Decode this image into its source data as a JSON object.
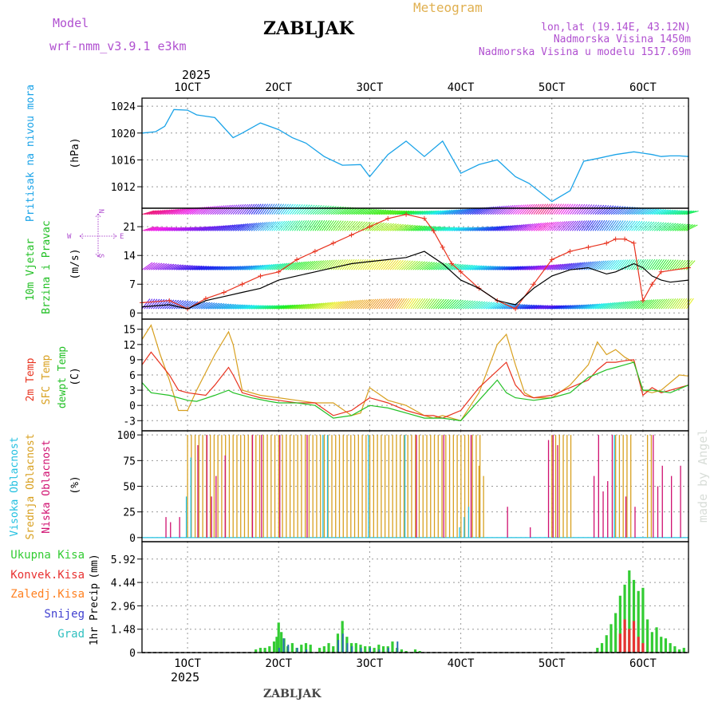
{
  "header": {
    "model_label": "Model",
    "model_name": "wrf-nmm_v3.9.1 e3km",
    "location_title": "ZABLJAK",
    "meteogram_label": "Meteogram",
    "coords": "lon,lat (19.14E, 43.12N)",
    "altitude": "Nadmorska Visina 1450m",
    "model_altitude": "Nadmorska Visina u modelu 1517.69m"
  },
  "footer_title": "ZABLJAK",
  "watermark": "made by Angel",
  "colors": {
    "pressure": "#1aa3e8",
    "wind_speed": "#000000",
    "wind_gust": "#e8321e",
    "temp2m": "#e8321e",
    "sfc_temp": "#d8a020",
    "dewpoint": "#22c025",
    "high_cloud": "#22c0e0",
    "mid_cloud": "#d8a020",
    "low_cloud": "#d01070",
    "precip_total": "#33cc33",
    "precip_conv": "#e83232",
    "precip_ice": "#ff8020",
    "snow": "#4040d0",
    "hail": "#30c0c0"
  },
  "time_axis": {
    "year": "2025",
    "ticks": [
      "1OCT",
      "2OCT",
      "3OCT",
      "4OCT",
      "5OCT",
      "6OCT"
    ],
    "ticks_top": [
      "1OCT",
      "2OCT",
      "3OCT",
      "4OCT",
      "5OCT",
      "6OCT"
    ],
    "t_start_days": -0.5,
    "t_end_days": 5.5
  },
  "chart_data": [
    {
      "type": "line",
      "id": "pressure",
      "ylabel": "Pritisak na nivou mora",
      "unit": "(hPa)",
      "yticks": [
        1012,
        1016,
        1020,
        1024
      ],
      "ylim": [
        1008.8,
        1025.2
      ],
      "series": [
        {
          "name": "MSLP",
          "x": [
            -0.5,
            -0.35,
            -0.25,
            -0.15,
            0.0,
            0.1,
            0.3,
            0.5,
            0.6,
            0.8,
            1.0,
            1.15,
            1.3,
            1.5,
            1.7,
            1.9,
            2.0,
            2.2,
            2.4,
            2.6,
            2.8,
            3.0,
            3.2,
            3.4,
            3.6,
            3.75,
            4.0,
            4.2,
            4.35,
            4.5,
            4.7,
            4.9,
            5.0,
            5.1,
            5.2,
            5.3,
            5.4,
            5.5
          ],
          "values": [
            1020,
            1020.2,
            1021,
            1023.5,
            1023.4,
            1022.7,
            1022.3,
            1019.3,
            1020,
            1021.5,
            1020.5,
            1019.3,
            1018.5,
            1016.5,
            1015.2,
            1015.3,
            1013.5,
            1016.8,
            1018.8,
            1016.5,
            1018.8,
            1014,
            1015.3,
            1016,
            1013.5,
            1012.5,
            1009.8,
            1011.4,
            1015.8,
            1016.2,
            1016.8,
            1017.2,
            1017.0,
            1016.8,
            1016.5,
            1016.6,
            1016.6,
            1016.5
          ]
        }
      ]
    },
    {
      "type": "line",
      "id": "wind",
      "ylabel": "10m Vjetar Brzina i Pravac",
      "unit": "(m/s)",
      "compass": {
        "n": "N",
        "s": "S",
        "e": "E",
        "w": "W"
      },
      "yticks": [
        0,
        7,
        14,
        21
      ],
      "ylim": [
        -1.5,
        25.5
      ],
      "series": [
        {
          "name": "wind speed",
          "x": [
            -0.5,
            -0.2,
            0.0,
            0.2,
            0.4,
            0.6,
            0.8,
            1.0,
            1.2,
            1.4,
            1.6,
            1.8,
            2.0,
            2.2,
            2.4,
            2.6,
            2.8,
            2.9,
            3.0,
            3.1,
            3.2,
            3.4,
            3.6,
            3.8,
            4.0,
            4.2,
            4.4,
            4.6,
            4.7,
            4.8,
            4.9,
            5.0,
            5.1,
            5.2,
            5.3,
            5.5
          ],
          "values": [
            1.5,
            2,
            1,
            3,
            4,
            5,
            6,
            8,
            9,
            10,
            11,
            12,
            12.5,
            13,
            13.5,
            15,
            12,
            10,
            8,
            7,
            6,
            3,
            2,
            6,
            9,
            10.5,
            11,
            9.5,
            10,
            11,
            12,
            11,
            9,
            8,
            7.5,
            8
          ]
        },
        {
          "name": "wind gust",
          "x": [
            -0.5,
            -0.2,
            0.0,
            0.2,
            0.4,
            0.6,
            0.8,
            1.0,
            1.2,
            1.4,
            1.6,
            1.8,
            2.0,
            2.2,
            2.4,
            2.6,
            2.7,
            2.8,
            2.9,
            3.0,
            3.2,
            3.4,
            3.6,
            3.8,
            4.0,
            4.2,
            4.4,
            4.6,
            4.7,
            4.8,
            4.9,
            5.0,
            5.1,
            5.2,
            5.5
          ],
          "values": [
            2.5,
            3,
            1,
            3.5,
            5,
            7,
            9,
            10,
            13,
            15,
            17,
            19,
            21,
            23,
            24,
            23,
            20,
            16,
            12,
            10,
            6,
            3,
            1,
            7,
            13,
            15,
            16,
            17,
            18,
            18,
            17,
            3,
            7,
            10,
            11
          ]
        }
      ]
    },
    {
      "type": "line",
      "id": "temperature",
      "ylabel": "2m Temp",
      "ylabel2": "SFC Temp",
      "ylabel3": "dewpt Temp",
      "unit": "(C)",
      "yticks": [
        -3,
        0,
        3,
        6,
        9,
        12,
        15
      ],
      "ylim": [
        -5,
        17
      ],
      "series": [
        {
          "name": "2m Temp",
          "x": [
            -0.5,
            -0.4,
            -0.2,
            -0.1,
            0.0,
            0.2,
            0.3,
            0.45,
            0.5,
            0.6,
            0.8,
            1.0,
            1.2,
            1.4,
            1.6,
            1.8,
            2.0,
            2.2,
            2.4,
            2.6,
            2.7,
            2.8,
            3.0,
            3.2,
            3.5,
            3.6,
            3.7,
            3.8,
            4.0,
            4.2,
            4.4,
            4.5,
            4.6,
            4.7,
            4.8,
            4.9,
            5.0,
            5.1,
            5.2,
            5.5
          ],
          "values": [
            8,
            10.5,
            6,
            3,
            2.5,
            2,
            4,
            7.5,
            6,
            2.5,
            1.5,
            1,
            0.5,
            0.5,
            -2,
            -1,
            1.5,
            0.5,
            -1,
            -2,
            -2,
            -2.5,
            -1,
            3.5,
            8.5,
            4,
            2,
            1.5,
            2,
            3.5,
            5,
            7,
            8.5,
            8.5,
            8.8,
            9,
            2,
            3.5,
            2.5,
            4
          ]
        },
        {
          "name": "SFC Temp",
          "x": [
            -0.5,
            -0.4,
            -0.3,
            -0.2,
            -0.1,
            0.0,
            0.1,
            0.3,
            0.45,
            0.5,
            0.6,
            0.8,
            1.0,
            1.2,
            1.4,
            1.6,
            1.8,
            1.9,
            2.0,
            2.2,
            2.4,
            2.6,
            2.7,
            2.8,
            3.0,
            3.2,
            3.4,
            3.5,
            3.6,
            3.7,
            3.8,
            4.0,
            4.2,
            4.4,
            4.5,
            4.6,
            4.7,
            4.8,
            4.9,
            5.0,
            5.1,
            5.2,
            5.4,
            5.5
          ],
          "values": [
            13,
            15.8,
            10,
            5,
            -1,
            -1,
            3,
            10,
            14.5,
            12,
            3,
            2,
            1.5,
            1,
            0.5,
            0.5,
            -2,
            -1.5,
            3.5,
            1,
            0,
            -2,
            -2.5,
            -2,
            -3,
            2.5,
            12,
            14,
            8,
            2.5,
            1.5,
            1.5,
            4,
            8,
            12.5,
            10,
            11,
            9.5,
            8.5,
            3,
            2.5,
            3,
            6,
            5.8
          ]
        },
        {
          "name": "dewpt Temp",
          "x": [
            -0.5,
            -0.4,
            -0.2,
            0.0,
            0.1,
            0.3,
            0.45,
            0.5,
            0.7,
            0.9,
            1.0,
            1.2,
            1.4,
            1.6,
            1.8,
            2.0,
            2.2,
            2.4,
            2.6,
            2.8,
            3.0,
            3.2,
            3.4,
            3.5,
            3.6,
            3.8,
            4.0,
            4.2,
            4.4,
            4.6,
            4.7,
            4.8,
            4.9,
            5.0,
            5.1,
            5.3,
            5.5
          ],
          "values": [
            4.5,
            2.5,
            2,
            1,
            0.8,
            2,
            3,
            2.5,
            1.5,
            0.8,
            0.5,
            0.5,
            0,
            -2.5,
            -2,
            0,
            -0.5,
            -1.5,
            -2.5,
            -2.5,
            -3,
            1,
            5,
            2.5,
            1.5,
            1,
            1.5,
            2.5,
            5.5,
            7,
            7.5,
            8,
            8.5,
            3,
            3,
            2.5,
            4
          ]
        }
      ]
    },
    {
      "type": "bar",
      "id": "clouds",
      "ylabel": "Visoka Oblacnost",
      "ylabel2": "Srednja Oblacnost",
      "ylabel3": "Niska Oblacnost",
      "unit": "(%)",
      "yticks": [
        0,
        25,
        50,
        75,
        100
      ],
      "ylim": [
        -4,
        104
      ],
      "series": [
        {
          "name": "Visoka Oblacnost",
          "x": [
            0.0,
            0.05,
            1.5,
            1.55,
            2.0,
            2.4,
            3.0,
            3.05,
            3.1,
            4.7
          ],
          "values": [
            40,
            78,
            100,
            100,
            100,
            100,
            10,
            20,
            30,
            100
          ]
        },
        {
          "name": "Srednja Oblacnost",
          "segments": [
            [
              0.0,
              3.25
            ],
            [
              4.0,
              4.25
            ],
            [
              4.7,
              4.9
            ],
            [
              5.05,
              5.1
            ]
          ],
          "values_note": 100,
          "extra_x": [
            3.2,
            3.25
          ],
          "extra_values": [
            70,
            60
          ]
        },
        {
          "name": "Niska Oblacnost",
          "x": [
            -0.25,
            -0.2,
            -0.1,
            0.1,
            0.2,
            0.25,
            0.3,
            0.4,
            0.7,
            0.8,
            1.0,
            1.3,
            2.5,
            2.8,
            3.1,
            3.5,
            3.75,
            3.95,
            4.0,
            4.05,
            4.45,
            4.5,
            4.55,
            4.6,
            4.65,
            4.8,
            4.9,
            5.1,
            5.15,
            5.2,
            5.3,
            5.4
          ],
          "values": [
            20,
            15,
            20,
            90,
            100,
            40,
            60,
            80,
            100,
            100,
            100,
            100,
            100,
            100,
            100,
            30,
            10,
            95,
            100,
            90,
            60,
            100,
            45,
            55,
            100,
            40,
            30,
            100,
            50,
            70,
            60,
            70
          ]
        }
      ]
    },
    {
      "type": "bar",
      "id": "precipitation",
      "ylabel": "1hr Precip",
      "unit": "(mm)",
      "legend": [
        "Ukupna Kisa",
        "Konvek.Kisa",
        "Zaledj.Kisa",
        "Snijeg",
        "Grad"
      ],
      "yticks": [
        0,
        1.48,
        2.96,
        4.44,
        5.92
      ],
      "ylim": [
        0,
        7.02
      ],
      "series": [
        {
          "name": "Ukupna Kisa",
          "x": [
            0.75,
            0.8,
            0.85,
            0.9,
            0.95,
            0.98,
            1.0,
            1.03,
            1.06,
            1.1,
            1.15,
            1.2,
            1.25,
            1.3,
            1.35,
            1.45,
            1.5,
            1.55,
            1.6,
            1.65,
            1.7,
            1.75,
            1.8,
            1.85,
            1.9,
            1.95,
            2.0,
            2.05,
            2.1,
            2.15,
            2.2,
            2.25,
            2.3,
            2.35,
            2.4,
            2.45,
            2.5,
            2.55,
            2.6,
            2.65,
            4.5,
            4.55,
            4.6,
            4.65,
            4.7,
            4.75,
            4.8,
            4.85,
            4.9,
            4.95,
            5.0,
            5.05,
            5.1,
            5.15,
            5.2,
            5.25,
            5.3,
            5.35,
            5.4,
            5.45
          ],
          "values": [
            0.2,
            0.3,
            0.3,
            0.4,
            0.7,
            1.0,
            1.9,
            1.3,
            0.9,
            0.4,
            0.6,
            0.3,
            0.5,
            0.6,
            0.5,
            0.3,
            0.4,
            0.6,
            0.4,
            1.2,
            2.0,
            1.0,
            0.6,
            0.6,
            0.5,
            0.4,
            0.4,
            0.3,
            0.5,
            0.4,
            0.4,
            0.7,
            0.3,
            0.2,
            0.1,
            0.0,
            0.2,
            0.1,
            0.0,
            0.0,
            0.3,
            0.6,
            1.1,
            1.8,
            2.5,
            3.6,
            4.3,
            5.2,
            4.6,
            3.9,
            4.1,
            2.1,
            1.3,
            1.6,
            1.0,
            0.9,
            0.6,
            0.4,
            0.2,
            0.3
          ]
        },
        {
          "name": "Konvek.Kisa",
          "x": [
            4.75,
            4.8,
            4.85,
            4.9,
            4.95,
            5.0
          ],
          "values": [
            1.2,
            2.1,
            1.5,
            2.0,
            1.0,
            0.6
          ]
        },
        {
          "name": "Snijeg",
          "x": [
            1.0,
            1.05,
            1.1,
            1.2,
            1.3,
            1.65,
            1.7,
            1.75,
            1.8,
            1.9,
            2.0,
            2.1,
            2.2,
            2.3
          ],
          "values": [
            0.3,
            0.9,
            0.5,
            0.3,
            0.2,
            0.8,
            1.2,
            0.6,
            0.4,
            0.3,
            0.3,
            0.2,
            0.3,
            0.7
          ]
        }
      ]
    }
  ]
}
